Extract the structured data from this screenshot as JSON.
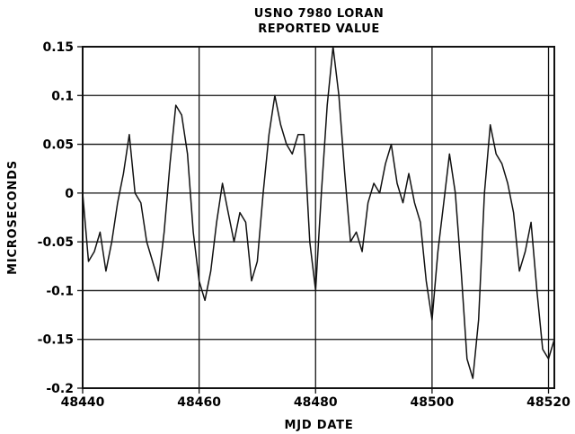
{
  "chart_data": {
    "type": "line",
    "title_lines": [
      "USNO 7980 LORAN",
      "REPORTED VALUE"
    ],
    "xlabel": "MJD DATE",
    "ylabel": "MICROSECONDS",
    "xlim": [
      48440,
      48521
    ],
    "ylim": [
      -0.2,
      0.15
    ],
    "x_ticks": [
      48440,
      48460,
      48480,
      48500,
      48520
    ],
    "x_tick_labels": [
      "48440",
      "48460",
      "48480",
      "48500",
      "48520"
    ],
    "y_ticks": [
      -0.2,
      -0.15,
      -0.1,
      -0.05,
      0,
      0.05,
      0.1,
      0.15
    ],
    "y_tick_labels": [
      "-0.2",
      "-0.15",
      "-0.1",
      "-0.05",
      "0",
      "0.05",
      "0.1",
      "0.15"
    ],
    "grid": "horizontal at y ticks, vertical at x ticks",
    "legend": "none",
    "series": [
      {
        "color": "#111111",
        "x": [
          48440,
          48441,
          48442,
          48443,
          48444,
          48445,
          48446,
          48447,
          48448,
          48449,
          48450,
          48451,
          48452,
          48453,
          48454,
          48455,
          48456,
          48457,
          48458,
          48459,
          48460,
          48461,
          48462,
          48463,
          48464,
          48465,
          48466,
          48467,
          48468,
          48469,
          48470,
          48471,
          48472,
          48473,
          48474,
          48475,
          48476,
          48477,
          48478,
          48479,
          48480,
          48481,
          48482,
          48483,
          48484,
          48485,
          48486,
          48487,
          48488,
          48489,
          48490,
          48491,
          48492,
          48493,
          48494,
          48495,
          48496,
          48497,
          48498,
          48499,
          48500,
          48501,
          48502,
          48503,
          48504,
          48505,
          48506,
          48507,
          48508,
          48509,
          48510,
          48511,
          48512,
          48513,
          48514,
          48515,
          48516,
          48517,
          48518,
          48519,
          48520,
          48521
        ],
        "y": [
          0.0,
          -0.07,
          -0.06,
          -0.04,
          -0.08,
          -0.05,
          -0.01,
          0.02,
          0.06,
          0.0,
          -0.01,
          -0.05,
          -0.07,
          -0.09,
          -0.04,
          0.03,
          0.09,
          0.08,
          0.04,
          -0.04,
          -0.09,
          -0.11,
          -0.08,
          -0.03,
          0.01,
          -0.02,
          -0.05,
          -0.02,
          -0.03,
          -0.09,
          -0.07,
          0.0,
          0.06,
          0.1,
          0.07,
          0.05,
          0.04,
          0.06,
          0.06,
          -0.05,
          -0.1,
          0.0,
          0.09,
          0.15,
          0.1,
          0.02,
          -0.05,
          -0.04,
          -0.06,
          -0.01,
          0.01,
          0.0,
          0.03,
          0.05,
          0.01,
          -0.01,
          0.02,
          -0.01,
          -0.03,
          -0.09,
          -0.13,
          -0.06,
          -0.01,
          0.04,
          0.0,
          -0.08,
          -0.17,
          -0.19,
          -0.13,
          0.0,
          0.07,
          0.04,
          0.03,
          0.01,
          -0.02,
          -0.08,
          -0.06,
          -0.03,
          -0.1,
          -0.16,
          -0.17,
          -0.15
        ]
      }
    ]
  }
}
